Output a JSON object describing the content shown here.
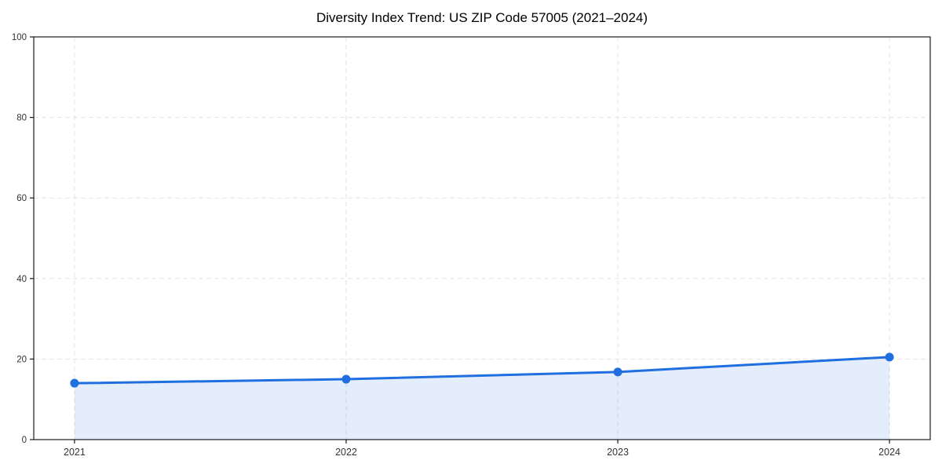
{
  "chart_data": {
    "type": "area",
    "title": "Diversity Index Trend: US ZIP Code 57005 (2021–2024)",
    "categories": [
      "2021",
      "2022",
      "2023",
      "2024"
    ],
    "x": [
      2021,
      2022,
      2023,
      2024
    ],
    "series": [
      {
        "name": "Diversity Index",
        "values": [
          14,
          15,
          16.8,
          20.5
        ]
      }
    ],
    "xlabel": "",
    "ylabel": "",
    "xlim": [
      2020.85,
      2024.15
    ],
    "ylim": [
      0,
      100
    ],
    "yticks": [
      0,
      20,
      40,
      60,
      80,
      100
    ],
    "grid": true,
    "grid_style": "dashed",
    "legend_position": "none",
    "marker": "circle",
    "colors": {
      "line": "#1f6fe0",
      "marker": "#1f6fe0",
      "area_fill": "rgba(31,111,224,0.12)",
      "gridline": "#e3e3e3",
      "axis": "#1a1a1a",
      "tick_label": "#333333",
      "title": "#000000",
      "background": "#ffffff"
    }
  }
}
